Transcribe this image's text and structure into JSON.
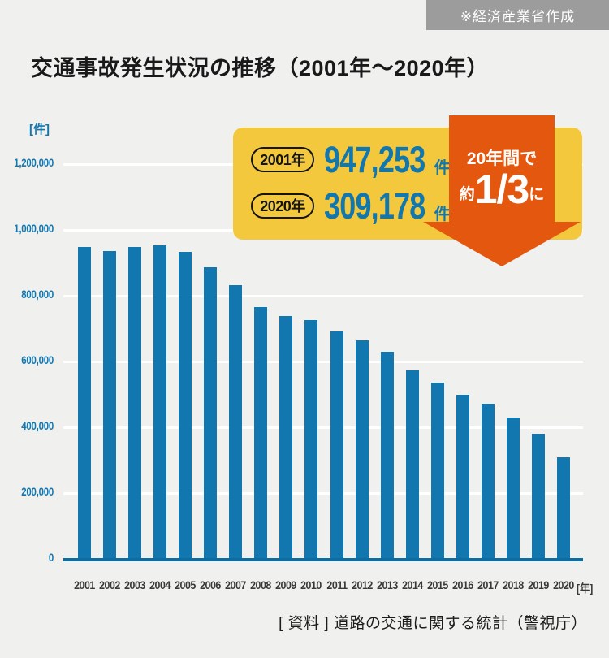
{
  "badge": {
    "label": "※経済産業省作成"
  },
  "title": "交通事故発生状況の推移（2001年〜2020年）",
  "y_axis_unit": "[件]",
  "x_axis_unit": "[年]",
  "source": "[ 資料 ] 道路の交通に関する統計（警視庁）",
  "callout": {
    "rows": [
      {
        "year_label": "2001年",
        "value": "947,253",
        "unit": "件"
      },
      {
        "year_label": "2020年",
        "value": "309,178",
        "unit": "件"
      }
    ],
    "arrow": {
      "line1": "20年間で",
      "prefix": "約",
      "fraction": "1/3",
      "suffix": "に"
    }
  },
  "colors": {
    "background": "#f0f0ee",
    "bar_blue": "#1277af",
    "axis_blue": "#0e6d9e",
    "callout_yellow": "#f4c83c",
    "arrow_orange": "#e4570f",
    "badge_gray": "#9c9c9c",
    "gridline_white": "#ffffff"
  },
  "chart_data": {
    "type": "bar",
    "title": "交通事故発生状況の推移（2001年〜2020年）",
    "xlabel": "[年]",
    "ylabel": "[件]",
    "categories": [
      "2001",
      "2002",
      "2003",
      "2004",
      "2005",
      "2006",
      "2007",
      "2008",
      "2009",
      "2010",
      "2011",
      "2012",
      "2013",
      "2014",
      "2015",
      "2016",
      "2017",
      "2018",
      "2019",
      "2020"
    ],
    "values": [
      947253,
      936950,
      948281,
      952720,
      934346,
      887267,
      832704,
      766394,
      737637,
      725924,
      692084,
      665157,
      629033,
      573842,
      536899,
      499201,
      472165,
      430601,
      381237,
      309178
    ],
    "ylim": [
      0,
      1200000
    ],
    "ytick_step": 200000,
    "ytick_labels": [
      "0",
      "200,000",
      "400,000",
      "600,000",
      "800,000",
      "1,000,000",
      "1,200,000"
    ],
    "grid": "horizontal-white",
    "legend": "none",
    "annotations": [
      {
        "label": "2001年",
        "value_text": "947,253 件"
      },
      {
        "label": "2020年",
        "value_text": "309,178 件"
      },
      {
        "note": "20年間で約1/3に"
      }
    ]
  }
}
